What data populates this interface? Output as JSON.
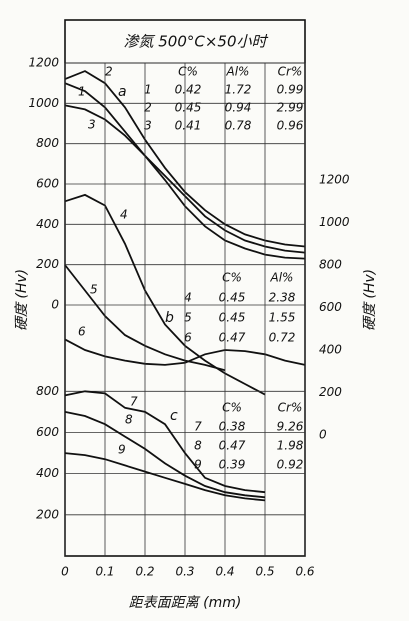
{
  "chart_data": [
    {
      "type": "line",
      "title": "渗氮 500°C×50小时",
      "y_label": "硬度 (Hv)",
      "label": "a",
      "xlim": [
        0,
        0.6
      ],
      "x": [
        0,
        0.05,
        0.1,
        0.15,
        0.2,
        0.25,
        0.3,
        0.35,
        0.4,
        0.45,
        0.5,
        0.55,
        0.6
      ],
      "ylim": [
        0,
        1200
      ],
      "yticks": [
        0,
        200,
        400,
        600,
        800,
        1000,
        1200
      ],
      "grid": true,
      "series": [
        {
          "name": "1",
          "color": "#111111",
          "values": [
            1100,
            1060,
            980,
            860,
            740,
            640,
            540,
            440,
            370,
            320,
            290,
            270,
            260
          ]
        },
        {
          "name": "2",
          "color": "#111111",
          "values": [
            1120,
            1160,
            1100,
            980,
            820,
            680,
            560,
            470,
            400,
            350,
            320,
            300,
            290
          ]
        },
        {
          "name": "3",
          "color": "#111111",
          "values": [
            990,
            970,
            920,
            840,
            740,
            620,
            490,
            390,
            320,
            280,
            250,
            235,
            230
          ]
        }
      ],
      "table": {
        "columns": [
          "C%",
          "Al%",
          "Cr%"
        ],
        "rows": [
          [
            "0.42",
            "1.72",
            "0.99"
          ],
          [
            "0.45",
            "0.94",
            "2.99"
          ],
          [
            "0.41",
            "0.78",
            "0.96"
          ]
        ]
      }
    },
    {
      "type": "line",
      "y2_label": "硬度 (Hv)",
      "label": "b",
      "xlim": [
        0,
        0.6
      ],
      "x": [
        0,
        0.05,
        0.1,
        0.15,
        0.2,
        0.25,
        0.3,
        0.35,
        0.4,
        0.45,
        0.5,
        0.55,
        0.6
      ],
      "y2lim": [
        0,
        1200
      ],
      "y2ticks": [
        0,
        200,
        400,
        600,
        800,
        1000,
        1200
      ],
      "series": [
        {
          "name": "4",
          "color": "#111111",
          "axis": "y2",
          "values": [
            1100,
            1130,
            1080,
            900,
            680,
            520,
            420,
            350,
            290,
            240,
            190,
            null,
            null
          ]
        },
        {
          "name": "5",
          "color": "#111111",
          "axis": "y2",
          "values": [
            800,
            680,
            560,
            470,
            420,
            380,
            350,
            330,
            305,
            null,
            null,
            null,
            null
          ]
        },
        {
          "name": "6",
          "color": "#111111",
          "axis": "y2",
          "values": [
            450,
            400,
            370,
            350,
            335,
            330,
            340,
            380,
            400,
            395,
            380,
            350,
            330
          ]
        }
      ],
      "table": {
        "columns": [
          "C%",
          "Al%"
        ],
        "rows": [
          [
            "0.45",
            "2.38"
          ],
          [
            "0.45",
            "1.55"
          ],
          [
            "0.47",
            "0.72"
          ]
        ]
      }
    },
    {
      "type": "line",
      "label": "c",
      "x_label": "距表面距离 (mm)",
      "xlim": [
        0,
        0.6
      ],
      "xticks": [
        0,
        0.1,
        0.2,
        0.3,
        0.4,
        0.5,
        0.6
      ],
      "x": [
        0,
        0.05,
        0.1,
        0.15,
        0.2,
        0.25,
        0.3,
        0.35,
        0.4,
        0.45,
        0.5,
        0.55,
        0.6
      ],
      "ylim": [
        0,
        850
      ],
      "yticks": [
        200,
        400,
        600,
        800
      ],
      "grid": true,
      "series": [
        {
          "name": "7",
          "color": "#111111",
          "values": [
            780,
            800,
            790,
            720,
            700,
            640,
            500,
            380,
            340,
            320,
            310,
            null,
            null
          ]
        },
        {
          "name": "8",
          "color": "#111111",
          "values": [
            700,
            680,
            640,
            580,
            520,
            450,
            390,
            340,
            310,
            295,
            285,
            null,
            null
          ]
        },
        {
          "name": "9",
          "color": "#111111",
          "values": [
            500,
            490,
            470,
            440,
            410,
            380,
            350,
            320,
            295,
            280,
            270,
            null,
            null
          ]
        }
      ],
      "table": {
        "columns": [
          "C%",
          "Cr%"
        ],
        "rows": [
          [
            "0.38",
            "9.26"
          ],
          [
            "0.47",
            "1.98"
          ],
          [
            "0.39",
            "0.92"
          ]
        ]
      }
    }
  ]
}
